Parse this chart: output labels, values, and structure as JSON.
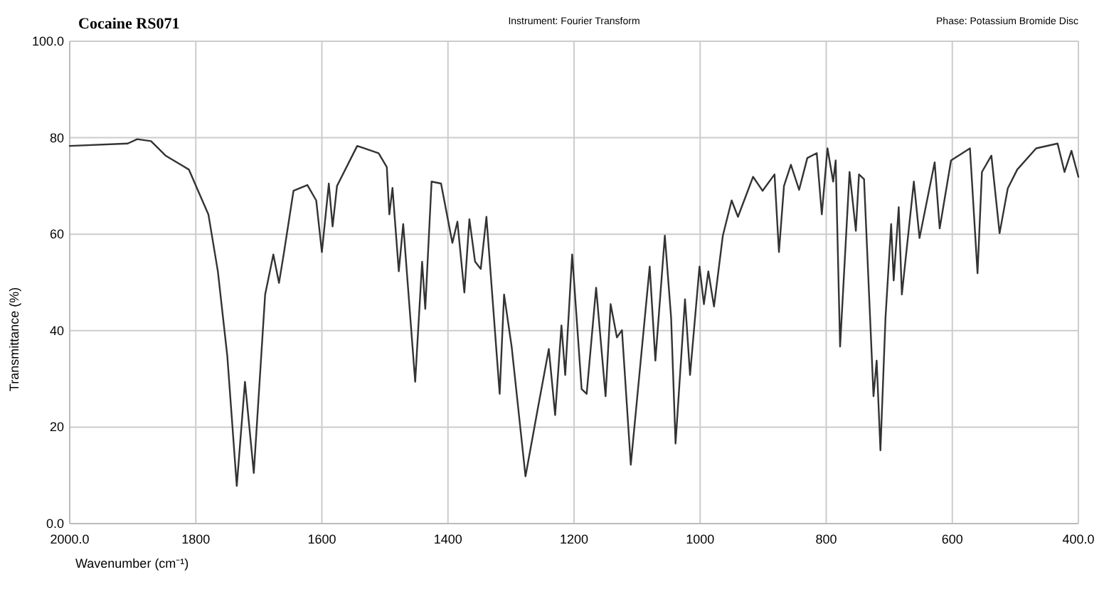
{
  "chart_data": {
    "type": "line",
    "title": "Cocaine RS071",
    "annotations": [
      "Instrument:  Fourier Transform",
      "Phase:  Potassium Bromide Disc"
    ],
    "xlabel": "Wavenumber (cm⁻¹)",
    "ylabel": "Transmittance (%)",
    "xlim": [
      2000,
      400
    ],
    "ylim": [
      0,
      100
    ],
    "xticks": [
      {
        "value": 2000,
        "label": "2000.0"
      },
      1800,
      1600,
      1400,
      1200,
      1000,
      800,
      600,
      {
        "value": 400,
        "label": "400.0"
      }
    ],
    "yticks": [
      {
        "value": 0,
        "label": "0.0"
      },
      20,
      40,
      60,
      80,
      {
        "value": 100,
        "label": "100.0"
      }
    ],
    "grid": true,
    "series": [
      {
        "color": "#333333",
        "x": [
          2000,
          1908,
          1893,
          1871,
          1848,
          1811,
          1780,
          1765,
          1750,
          1735,
          1722,
          1708,
          1690,
          1677,
          1668,
          1660,
          1645,
          1623,
          1609,
          1600,
          1589,
          1583,
          1576,
          1544,
          1510,
          1497,
          1493,
          1488,
          1478,
          1471,
          1452,
          1441,
          1436,
          1426,
          1411,
          1393,
          1385,
          1374,
          1366,
          1357,
          1348,
          1339,
          1318,
          1311,
          1299,
          1277,
          1258,
          1240,
          1230,
          1220,
          1214,
          1203,
          1188,
          1180,
          1165,
          1150,
          1142,
          1132,
          1124,
          1110,
          1080,
          1071,
          1056,
          1046,
          1039,
          1024,
          1016,
          1001,
          994,
          987,
          978,
          964,
          950,
          940,
          916,
          901,
          882,
          875,
          867,
          856,
          843,
          830,
          815,
          807,
          798,
          789,
          785,
          778,
          763,
          753,
          748,
          740,
          725,
          720,
          714,
          706,
          697,
          693,
          685,
          680,
          661,
          652,
          628,
          620,
          602,
          572,
          560,
          553,
          538,
          525,
          512,
          497,
          467,
          433,
          422,
          411,
          400
        ],
        "values": [
          78.3,
          78.8,
          79.7,
          79.3,
          76.3,
          73.4,
          64.1,
          52.3,
          34.7,
          7.8,
          29.4,
          10.5,
          47.5,
          55.8,
          49.9,
          56.3,
          69.0,
          70.2,
          67.0,
          56.3,
          70.5,
          61.6,
          70.0,
          78.3,
          76.8,
          73.9,
          64.1,
          69.6,
          52.3,
          62.1,
          29.4,
          54.3,
          44.5,
          70.9,
          70.5,
          58.2,
          62.6,
          47.9,
          63.1,
          54.3,
          52.8,
          63.6,
          26.9,
          47.5,
          36.7,
          9.8,
          23.5,
          36.2,
          22.5,
          41.1,
          30.8,
          55.8,
          27.9,
          26.9,
          48.9,
          26.4,
          45.5,
          38.6,
          40.1,
          12.2,
          53.3,
          33.8,
          59.7,
          42.6,
          16.6,
          46.5,
          30.8,
          53.3,
          45.5,
          52.3,
          45.0,
          59.7,
          67.0,
          63.6,
          71.9,
          69.0,
          72.4,
          56.3,
          70.0,
          74.4,
          69.2,
          75.8,
          76.8,
          64.1,
          77.8,
          70.9,
          75.3,
          36.7,
          72.9,
          60.7,
          72.4,
          71.4,
          26.4,
          33.8,
          15.2,
          42.6,
          62.1,
          50.4,
          65.6,
          47.5,
          70.9,
          59.2,
          74.9,
          61.2,
          75.3,
          77.8,
          51.9,
          72.9,
          76.3,
          60.2,
          69.5,
          73.4,
          77.8,
          78.8,
          72.9,
          77.3,
          71.9
        ]
      }
    ]
  }
}
